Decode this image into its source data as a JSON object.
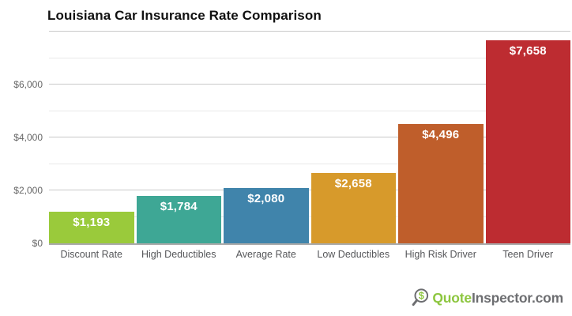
{
  "chart_data": {
    "type": "bar",
    "title": "Louisiana Car Insurance Rate Comparison",
    "categories": [
      "Discount Rate",
      "High Deductibles",
      "Average Rate",
      "Low Deductibles",
      "High Risk Driver",
      "Teen Driver"
    ],
    "values": [
      1193,
      1784,
      2080,
      2658,
      4496,
      7658
    ],
    "value_labels": [
      "$1,193",
      "$1,784",
      "$2,080",
      "$2,658",
      "$4,496",
      "$7,658"
    ],
    "bar_colors": [
      "#9aca3b",
      "#3ea795",
      "#4084ab",
      "#d79a2b",
      "#bf5e2b",
      "#bd2c31"
    ],
    "xlabel": "",
    "ylabel": "",
    "ylim": [
      0,
      8000
    ],
    "yticks": [
      {
        "value": 0,
        "label": "$0"
      },
      {
        "value": 2000,
        "label": "$2,000"
      },
      {
        "value": 4000,
        "label": "$4,000"
      },
      {
        "value": 6000,
        "label": "$6,000"
      }
    ],
    "gridlines_major": [
      2000,
      4000,
      6000,
      8000
    ],
    "gridlines_minor": [
      1000,
      3000,
      5000,
      7000
    ],
    "grid": true,
    "legend": false,
    "value_label_color": "#ffffff"
  },
  "branding": {
    "logo_text_primary": "Quote",
    "logo_text_secondary": "Inspector.com",
    "icon": "magnifier-dollar-icon",
    "color_primary": "#8dc63f",
    "color_secondary": "#6d6e71"
  }
}
